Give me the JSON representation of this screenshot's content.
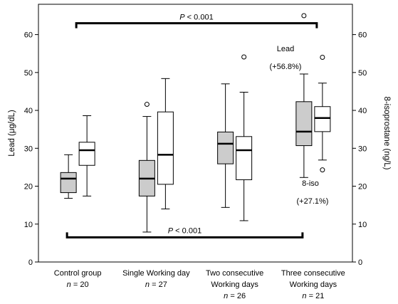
{
  "chart_data": {
    "type": "box",
    "title": "",
    "categories": [
      {
        "line1": "Control group",
        "n_label": "n",
        "n_value": "= 20"
      },
      {
        "line1": "Single Working day",
        "n_label": "n",
        "n_value": "= 27"
      },
      {
        "line1": "Two consecutive",
        "line2": "Working days",
        "n_label": "n",
        "n_value": "= 26"
      },
      {
        "line1": "Three consecutive",
        "line2": "Working days",
        "n_label": "n",
        "n_value": "= 21"
      }
    ],
    "y_left": {
      "label": "Lead (μg/dL)",
      "ylim": [
        0,
        68
      ],
      "ticks": [
        0,
        10,
        20,
        30,
        40,
        50,
        60
      ]
    },
    "y_right": {
      "label": "8-isoprostane (ng/L)",
      "ylim": [
        0,
        68
      ],
      "ticks": [
        0,
        10,
        20,
        30,
        40,
        50,
        60
      ]
    },
    "grid": false,
    "series": [
      {
        "name": "Lead",
        "fill": "#cccccc",
        "boxes": [
          {
            "whislo": 16.8,
            "q1": 18.3,
            "med": 22.0,
            "q3": 23.6,
            "whishi": 28.3,
            "fliers": []
          },
          {
            "whislo": 7.9,
            "q1": 17.4,
            "med": 22.0,
            "q3": 26.8,
            "whishi": 38.4,
            "fliers": [
              41.6
            ]
          },
          {
            "whislo": 14.4,
            "q1": 25.9,
            "med": 31.2,
            "q3": 34.3,
            "whishi": 47.0,
            "fliers": []
          },
          {
            "whislo": 22.3,
            "q1": 30.7,
            "med": 34.4,
            "q3": 42.3,
            "whishi": 49.6,
            "fliers": [
              65.0
            ]
          }
        ]
      },
      {
        "name": "8-iso",
        "fill": "#ffffff",
        "boxes": [
          {
            "whislo": 17.4,
            "q1": 25.5,
            "med": 29.5,
            "q3": 31.6,
            "whishi": 38.6,
            "fliers": []
          },
          {
            "whislo": 14.0,
            "q1": 20.5,
            "med": 28.3,
            "q3": 39.6,
            "whishi": 48.4,
            "fliers": []
          },
          {
            "whislo": 10.9,
            "q1": 21.7,
            "med": 29.5,
            "q3": 33.1,
            "whishi": 44.8,
            "fliers": [
              54.1
            ]
          },
          {
            "whislo": 26.9,
            "q1": 34.4,
            "med": 38.0,
            "q3": 41.0,
            "whishi": 47.2,
            "fliers": [
              54.0,
              24.3
            ]
          }
        ]
      }
    ],
    "annotations": {
      "top_bracket": {
        "p_italic": "P",
        "text": " < 0.001",
        "y": 63.0
      },
      "bottom_bracket": {
        "p_italic": "P",
        "text": " < 0.001",
        "y": 6.5
      },
      "lead_label": "Lead",
      "lead_change": "(+56.8%)",
      "iso_label": "8-iso",
      "iso_change": "(+27.1%)"
    }
  }
}
